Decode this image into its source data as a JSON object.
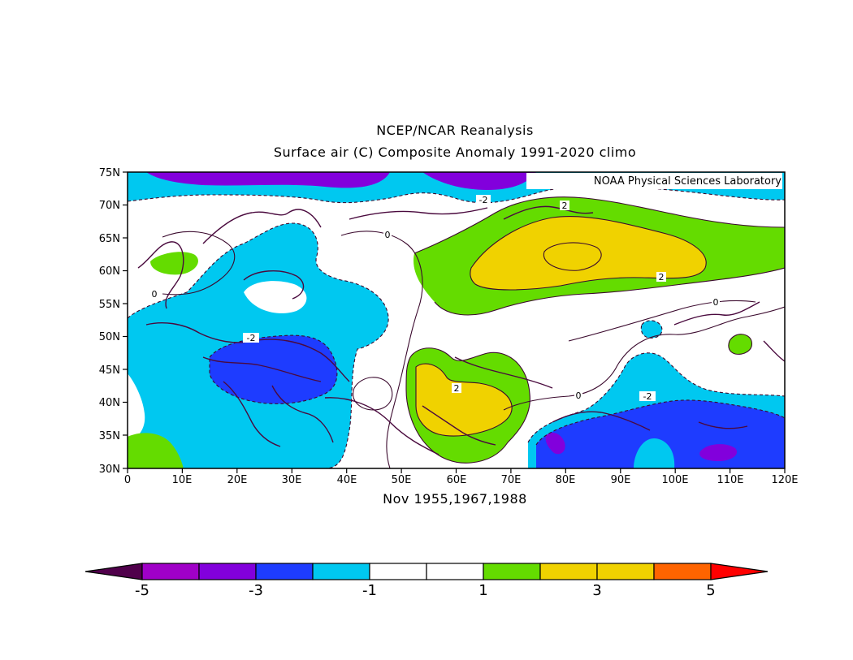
{
  "header": {
    "title": "NCEP/NCAR Reanalysis",
    "subtitle": "Surface air (C) Composite Anomaly 1991-2020 climo"
  },
  "map": {
    "watermark": "NOAA Physical Sciences Laboratory",
    "period_label": "Nov 1955,1967,1988",
    "lat_labels": [
      "75N",
      "70N",
      "65N",
      "60N",
      "55N",
      "50N",
      "45N",
      "40N",
      "35N",
      "30N"
    ],
    "lon_labels": [
      "0",
      "10E",
      "20E",
      "30E",
      "40E",
      "50E",
      "60E",
      "70E",
      "80E",
      "90E",
      "100E",
      "110E",
      "120E"
    ],
    "contour_labels": [
      "-2",
      "2",
      "0",
      "2",
      "0",
      "-2",
      "2",
      "0",
      "-2",
      "0"
    ],
    "lat_range": [
      30,
      75
    ],
    "lon_range": [
      0,
      120
    ]
  },
  "colorbar": {
    "tick_labels": [
      "-5",
      "-3",
      "-1",
      "1",
      "3",
      "5"
    ],
    "colors": [
      "#a000c8",
      "#8200dc",
      "#1e3cff",
      "#00c8f0",
      "#ffffff",
      "#ffffff",
      "#64dc00",
      "#f0d200",
      "#f0d200",
      "#ff6400"
    ],
    "under_color": "#50004b",
    "over_color": "#ff0000"
  }
}
